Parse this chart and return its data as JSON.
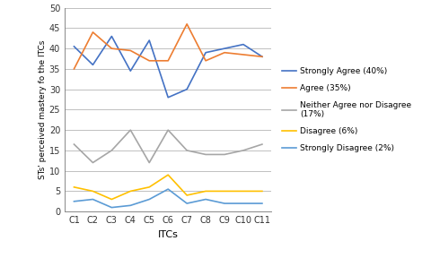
{
  "categories": [
    "C1",
    "C2",
    "C3",
    "C4",
    "C5",
    "C6",
    "C7",
    "C8",
    "C9",
    "C10",
    "C11"
  ],
  "series": [
    {
      "label": "Strongly Agree (40%)",
      "color": "#4472C4",
      "values": [
        40.5,
        36,
        43,
        34.5,
        42,
        28,
        30,
        39,
        40,
        41,
        38
      ]
    },
    {
      "label": "Agree (35%)",
      "color": "#ED7D31",
      "values": [
        35,
        44,
        40,
        39.5,
        37,
        37,
        46,
        37,
        39,
        38.5,
        38
      ]
    },
    {
      "label": "Neither Agree nor Disagree\n(17%)",
      "color": "#A6A6A6",
      "values": [
        16.5,
        12,
        15,
        20,
        12,
        20,
        15,
        14,
        14,
        15,
        16.5
      ]
    },
    {
      "label": "Disagree (6%)",
      "color": "#FFC000",
      "values": [
        6,
        5,
        3,
        5,
        6,
        9,
        4,
        5,
        5,
        5,
        5
      ]
    },
    {
      "label": "Strongly Disagree (2%)",
      "color": "#5B9BD5",
      "values": [
        2.5,
        3,
        1,
        1.5,
        3,
        5.5,
        2,
        3,
        2,
        2,
        2
      ]
    }
  ],
  "xlabel": "ITCs",
  "ylabel": "STs' perceived mastery fo the ITCs",
  "ylim": [
    0,
    50
  ],
  "yticks": [
    0,
    5,
    10,
    15,
    20,
    25,
    30,
    35,
    40,
    45,
    50
  ],
  "background_color": "#ffffff",
  "plot_bg_color": "#ffffff",
  "grid_color": "#C0C0C0",
  "figsize": [
    4.8,
    2.88
  ],
  "dpi": 100
}
